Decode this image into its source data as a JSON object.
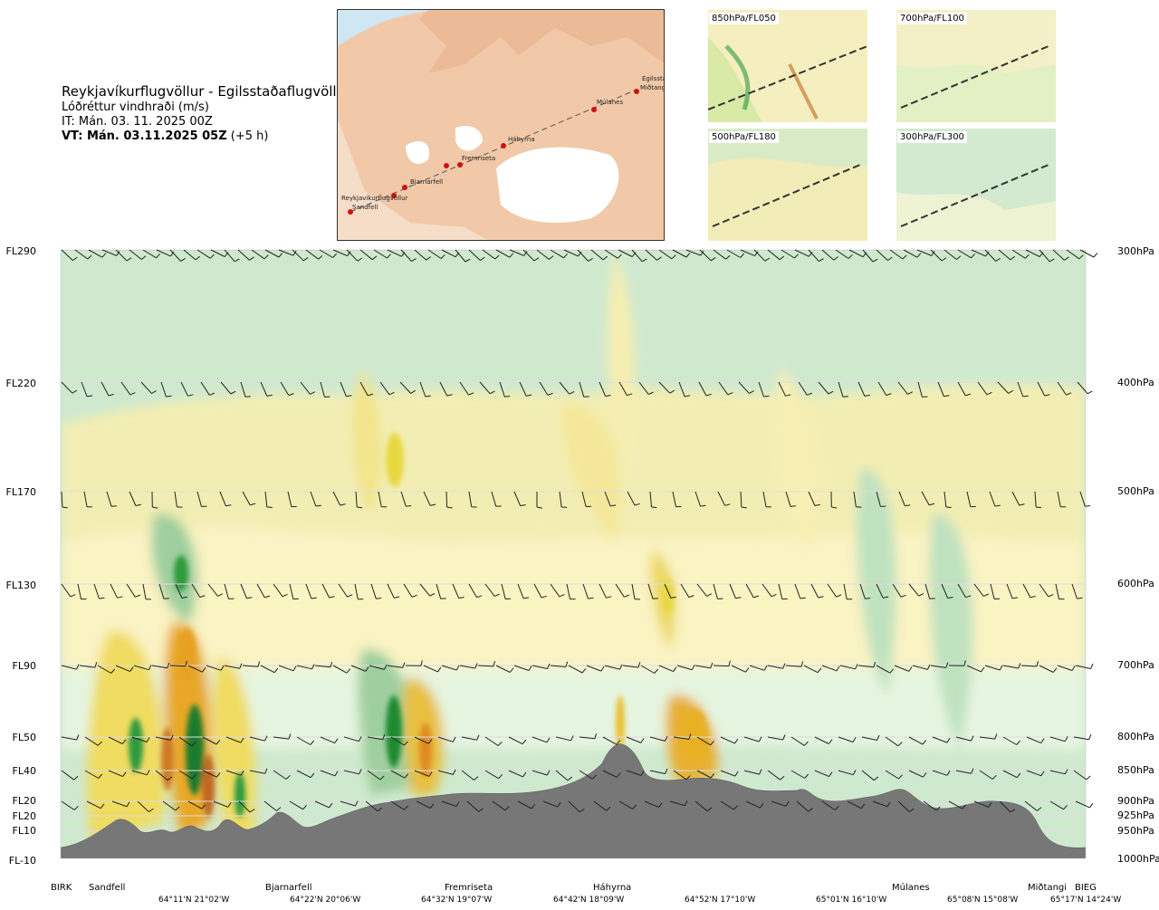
{
  "title": {
    "route": "Reykjavíkurflugvöllur - Egilsstaðaflugvöllur",
    "variable": "Lóðréttur vindhraði (m/s)",
    "it_prefix": "IT:",
    "it_value": "Mán. 03. 11. 2025 00Z",
    "vt_bold": "VT: Mán. 03.11.2025 05Z",
    "vt_suffix": "(+5 h)"
  },
  "map": {
    "points": [
      "Reykjavíkurflugvöllur",
      "Sandfell",
      "Bjarnarfell",
      "Fremriseta",
      "Háhyrna",
      "Múlanes",
      "Egilsstaðir",
      "Miðtangi"
    ]
  },
  "thumbnails": [
    {
      "label": "850hPa/FL050"
    },
    {
      "label": "700hPa/FL100"
    },
    {
      "label": "500hPa/FL180"
    },
    {
      "label": "300hPa/FL300"
    }
  ],
  "chart_data": {
    "type": "heatmap",
    "description_variable": "Lóðréttur vindhraði (m/s)",
    "flight_levels": [
      "FL290",
      "FL220",
      "FL170",
      "FL130",
      "FL90",
      "FL50",
      "FL40",
      "FL20",
      "FL20",
      "FL10",
      "FL-10"
    ],
    "pressure_levels": [
      "300hPa",
      "400hPa",
      "500hPa",
      "600hPa",
      "700hPa",
      "800hPa",
      "850hPa",
      "900hPa",
      "925hPa",
      "950hPa",
      "1000hPa"
    ],
    "pressure_values": [
      300,
      400,
      500,
      600,
      700,
      800,
      850,
      900,
      925,
      950,
      1000
    ],
    "locations": [
      "BIRK",
      "Sandfell",
      "Bjarnarfell",
      "Fremriseta",
      "Háhyrna",
      "Múlanes",
      "Miðtangi",
      "BIEG"
    ],
    "coordinates": [
      "64°11'N 21°02'W",
      "64°22'N 20°06'W",
      "64°32'N 19°07'W",
      "64°42'N 18°09'W",
      "64°52'N 17°10'W",
      "65°01'N 16°10'W",
      "65°08'N 15°08'W",
      "65°17'N 14°24'W"
    ],
    "colors": {
      "background": "#cfe9cf",
      "light_green": "#e6f5e0",
      "light_yellow": "#faf3c2",
      "yellow": "#f4e79a",
      "strong_yellow": "#e8d840",
      "orange": "#e8a828",
      "brown": "#c06820",
      "green_mid": "#9fcf9f",
      "green_dark": "#2e9a3e",
      "terrain": "#777777"
    }
  }
}
